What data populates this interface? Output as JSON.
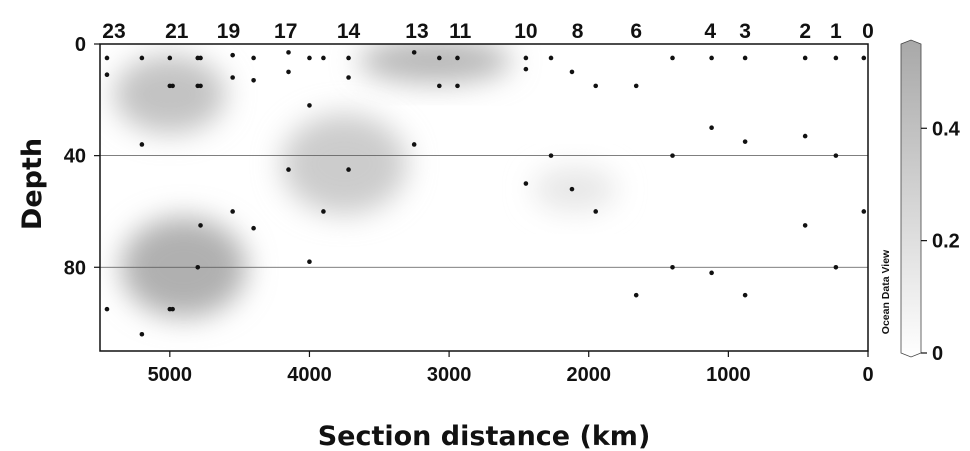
{
  "chart_data": {
    "type": "scatter",
    "title": "",
    "xlabel": "Section distance (km)",
    "ylabel": "Depth",
    "xlim": [
      5500,
      0
    ],
    "ylim": [
      0,
      110
    ],
    "x_reversed": true,
    "y_reversed": true,
    "x_ticks": [
      5000,
      4000,
      3000,
      2000,
      1000,
      0
    ],
    "y_ticks": [
      0,
      40,
      80
    ],
    "gridlines_y": [
      40,
      80
    ],
    "colorbar": {
      "ticks": [
        0,
        0.2,
        0.4
      ],
      "range": [
        0,
        0.55
      ],
      "colors": [
        "#ffffff",
        "#a8a8a8"
      ]
    },
    "watermark": "Ocean Data View",
    "stations": [
      {
        "label": "23",
        "x": 5400
      },
      {
        "label": "21",
        "x": 4950
      },
      {
        "label": "19",
        "x": 4580
      },
      {
        "label": "17",
        "x": 4170
      },
      {
        "label": "14",
        "x": 3720
      },
      {
        "label": "13",
        "x": 3230
      },
      {
        "label": "11",
        "x": 2920
      },
      {
        "label": "10",
        "x": 2450
      },
      {
        "label": "8",
        "x": 2080
      },
      {
        "label": "6",
        "x": 1660
      },
      {
        "label": "4",
        "x": 1130
      },
      {
        "label": "3",
        "x": 880
      },
      {
        "label": "2",
        "x": 450
      },
      {
        "label": "1",
        "x": 230
      },
      {
        "label": "0",
        "x": 0
      }
    ],
    "shaded_regions": [
      {
        "x": 5000,
        "depth": 18,
        "rx": 400,
        "ry": 14,
        "value": 0.38
      },
      {
        "x": 4900,
        "depth": 80,
        "rx": 450,
        "ry": 18,
        "value": 0.5
      },
      {
        "x": 3750,
        "depth": 43,
        "rx": 450,
        "ry": 18,
        "value": 0.32
      },
      {
        "x": 3100,
        "depth": 6,
        "rx": 550,
        "ry": 8,
        "value": 0.45
      },
      {
        "x": 2100,
        "depth": 52,
        "rx": 300,
        "ry": 8,
        "value": 0.15
      }
    ],
    "sample_points": [
      [
        5450,
        5
      ],
      [
        5450,
        11
      ],
      [
        5200,
        5
      ],
      [
        5200,
        36
      ],
      [
        5200,
        104
      ],
      [
        5450,
        95
      ],
      [
        5000,
        5
      ],
      [
        5000,
        15
      ],
      [
        4980,
        15
      ],
      [
        5000,
        95
      ],
      [
        4980,
        95
      ],
      [
        4800,
        5
      ],
      [
        4780,
        5
      ],
      [
        4800,
        15
      ],
      [
        4780,
        15
      ],
      [
        4780,
        65
      ],
      [
        4800,
        80
      ],
      [
        4550,
        4
      ],
      [
        4550,
        12
      ],
      [
        4550,
        60
      ],
      [
        4400,
        5
      ],
      [
        4400,
        13
      ],
      [
        4400,
        66
      ],
      [
        4150,
        3
      ],
      [
        4150,
        10
      ],
      [
        4150,
        45
      ],
      [
        4000,
        5
      ],
      [
        4000,
        22
      ],
      [
        4000,
        78
      ],
      [
        3900,
        5
      ],
      [
        3900,
        60
      ],
      [
        3720,
        5
      ],
      [
        3720,
        12
      ],
      [
        3720,
        45
      ],
      [
        3250,
        3
      ],
      [
        3250,
        36
      ],
      [
        3070,
        5
      ],
      [
        3070,
        15
      ],
      [
        2940,
        5
      ],
      [
        2940,
        15
      ],
      [
        2450,
        5
      ],
      [
        2450,
        9
      ],
      [
        2450,
        50
      ],
      [
        2270,
        5
      ],
      [
        2270,
        40
      ],
      [
        2120,
        10
      ],
      [
        2120,
        52
      ],
      [
        1950,
        15
      ],
      [
        1950,
        60
      ],
      [
        1660,
        15
      ],
      [
        1660,
        90
      ],
      [
        1400,
        5
      ],
      [
        1400,
        40
      ],
      [
        1400,
        80
      ],
      [
        1120,
        5
      ],
      [
        1120,
        30
      ],
      [
        1120,
        82
      ],
      [
        880,
        5
      ],
      [
        880,
        35
      ],
      [
        880,
        90
      ],
      [
        450,
        5
      ],
      [
        450,
        33
      ],
      [
        450,
        65
      ],
      [
        230,
        5
      ],
      [
        230,
        40
      ],
      [
        230,
        80
      ],
      [
        30,
        5
      ],
      [
        30,
        60
      ]
    ]
  }
}
